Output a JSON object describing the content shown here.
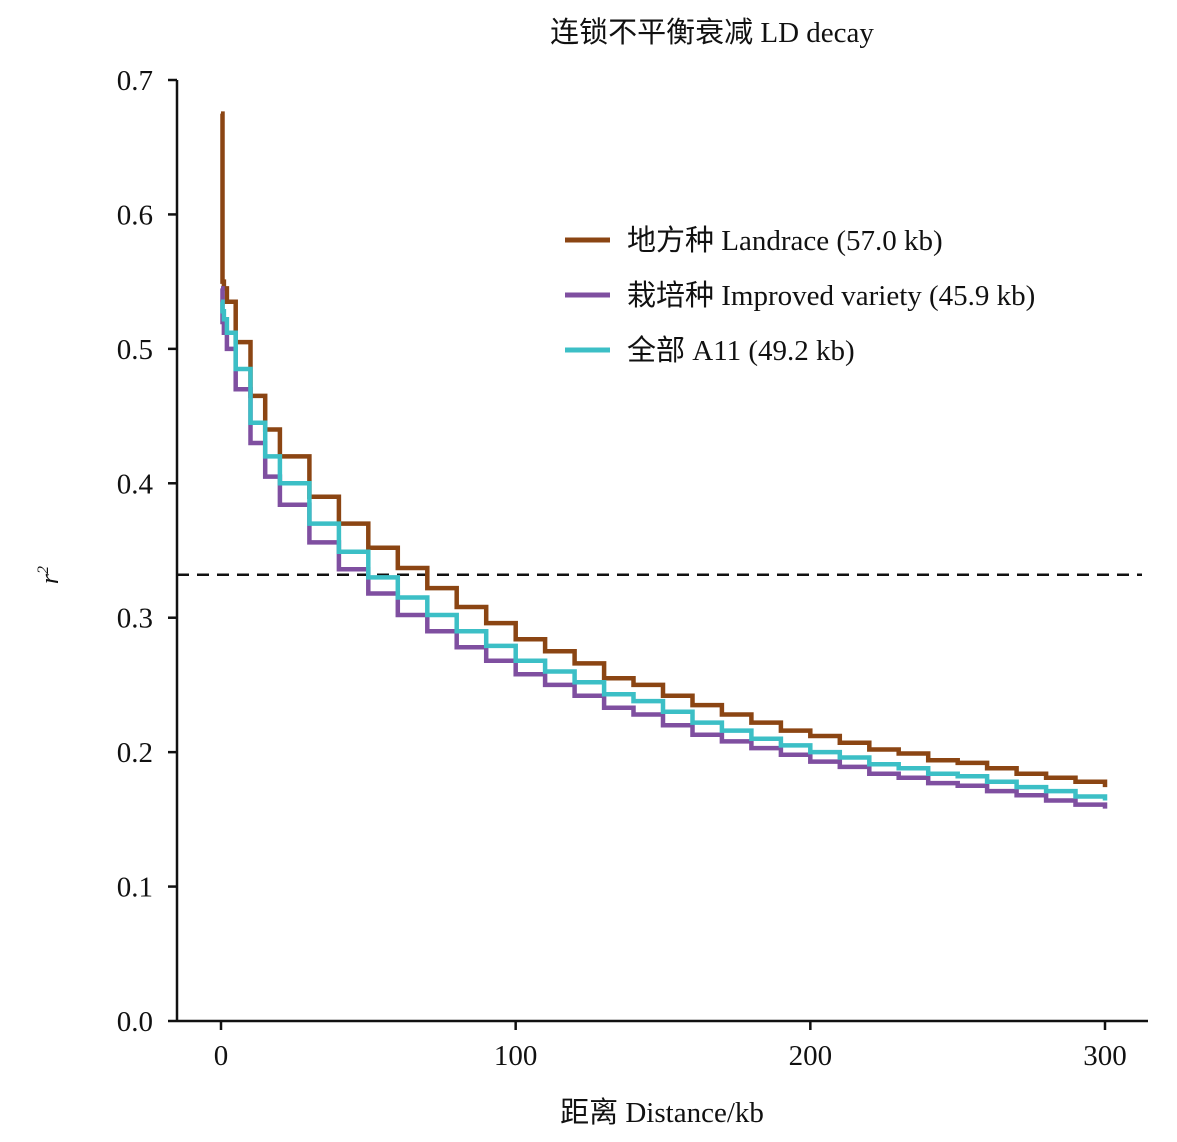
{
  "chart_data": {
    "type": "line",
    "title": "连锁不平衡衰减 LD decay",
    "xlabel": "距离 Distance/kb",
    "ylabel": "r",
    "ylabel_sup": "2",
    "xlim": [
      -15,
      315
    ],
    "ylim": [
      0,
      0.7
    ],
    "x_ticks": [
      0,
      100,
      200,
      300
    ],
    "x_tick_labels": [
      "0",
      "100",
      "200",
      "300"
    ],
    "y_ticks": [
      0,
      0.1,
      0.2,
      0.3,
      0.4,
      0.5,
      0.6,
      0.7
    ],
    "y_tick_labels": [
      "0.0",
      "0.1",
      "0.2",
      "0.3",
      "0.4",
      "0.5",
      "0.6",
      "0.7"
    ],
    "threshold": {
      "y": 0.332,
      "style": "dashed"
    },
    "legend": {
      "position": "upper-right"
    },
    "series": [
      {
        "name": "地方种 Landrace (57.0 kb)",
        "color": "#8B4513",
        "x": [
          0,
          0.5,
          1,
          2,
          5,
          10,
          15,
          20,
          30,
          40,
          50,
          60,
          70,
          80,
          90,
          100,
          110,
          120,
          130,
          140,
          150,
          160,
          170,
          180,
          190,
          200,
          210,
          220,
          230,
          240,
          250,
          260,
          270,
          280,
          290,
          300
        ],
        "values": [
          0.675,
          0.55,
          0.545,
          0.535,
          0.505,
          0.465,
          0.44,
          0.42,
          0.39,
          0.37,
          0.352,
          0.337,
          0.322,
          0.308,
          0.296,
          0.284,
          0.275,
          0.266,
          0.255,
          0.25,
          0.242,
          0.235,
          0.228,
          0.222,
          0.216,
          0.212,
          0.207,
          0.202,
          0.199,
          0.194,
          0.192,
          0.188,
          0.184,
          0.181,
          0.178,
          0.174
        ]
      },
      {
        "name": "栽培种 Improved variety (45.9 kb)",
        "color": "#7F4FA0",
        "x": [
          0,
          0.5,
          1,
          2,
          5,
          10,
          15,
          20,
          30,
          40,
          50,
          60,
          70,
          80,
          90,
          100,
          110,
          120,
          130,
          140,
          150,
          160,
          170,
          180,
          190,
          200,
          210,
          220,
          230,
          240,
          250,
          260,
          270,
          280,
          290,
          300
        ],
        "values": [
          0.545,
          0.52,
          0.512,
          0.5,
          0.47,
          0.43,
          0.405,
          0.384,
          0.356,
          0.336,
          0.318,
          0.302,
          0.29,
          0.278,
          0.268,
          0.258,
          0.25,
          0.242,
          0.233,
          0.228,
          0.22,
          0.213,
          0.208,
          0.203,
          0.198,
          0.193,
          0.189,
          0.184,
          0.181,
          0.177,
          0.175,
          0.171,
          0.168,
          0.164,
          0.161,
          0.158
        ]
      },
      {
        "name": "全部 A11 (49.2 kb)",
        "color": "#3CBFC6",
        "x": [
          0,
          0.5,
          1,
          2,
          5,
          10,
          15,
          20,
          30,
          40,
          50,
          60,
          70,
          80,
          90,
          100,
          110,
          120,
          130,
          140,
          150,
          160,
          170,
          180,
          190,
          200,
          210,
          220,
          230,
          240,
          250,
          260,
          270,
          280,
          290,
          300
        ],
        "values": [
          0.535,
          0.528,
          0.522,
          0.512,
          0.485,
          0.445,
          0.42,
          0.4,
          0.37,
          0.349,
          0.33,
          0.315,
          0.302,
          0.29,
          0.279,
          0.268,
          0.26,
          0.252,
          0.243,
          0.238,
          0.23,
          0.222,
          0.216,
          0.21,
          0.205,
          0.2,
          0.196,
          0.191,
          0.188,
          0.184,
          0.182,
          0.178,
          0.174,
          0.171,
          0.167,
          0.164
        ]
      }
    ]
  }
}
